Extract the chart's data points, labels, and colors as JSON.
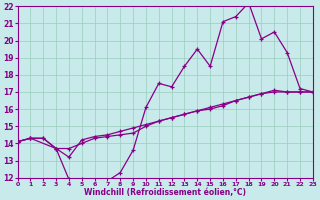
{
  "xlabel": "Windchill (Refroidissement éolien,°C)",
  "xlim": [
    0,
    23
  ],
  "ylim": [
    12,
    22
  ],
  "xticks": [
    0,
    1,
    2,
    3,
    4,
    5,
    6,
    7,
    8,
    9,
    10,
    11,
    12,
    13,
    14,
    15,
    16,
    17,
    18,
    19,
    20,
    21,
    22,
    23
  ],
  "yticks": [
    12,
    13,
    14,
    15,
    16,
    17,
    18,
    19,
    20,
    21,
    22
  ],
  "bg_color": "#c8eaea",
  "line_color": "#880088",
  "grid_color": "#99ccbb",
  "line1_x": [
    0,
    1,
    2,
    3,
    4,
    5,
    6,
    7,
    8,
    9,
    10,
    11,
    12,
    13,
    14,
    15,
    16,
    17,
    18,
    19,
    20,
    21,
    22,
    23
  ],
  "line1_y": [
    14.1,
    14.3,
    14.3,
    13.7,
    11.9,
    11.9,
    11.8,
    11.8,
    12.3,
    13.6,
    16.1,
    17.5,
    17.3,
    18.5,
    19.5,
    18.5,
    21.1,
    21.4,
    22.2,
    20.1,
    20.5,
    19.3,
    17.2,
    17.0
  ],
  "line2_x": [
    0,
    1,
    2,
    3,
    4,
    5,
    6,
    7,
    8,
    9,
    10,
    11,
    12,
    13,
    14,
    15,
    16,
    17,
    18,
    19,
    20,
    21,
    22,
    23
  ],
  "line2_y": [
    14.1,
    14.3,
    14.3,
    13.7,
    13.7,
    14.0,
    14.3,
    14.4,
    14.5,
    14.6,
    15.0,
    15.3,
    15.5,
    15.7,
    15.9,
    16.0,
    16.2,
    16.5,
    16.7,
    16.9,
    17.0,
    17.0,
    17.0,
    17.0
  ],
  "line3_x": [
    0,
    1,
    3,
    4,
    5,
    6,
    7,
    8,
    9,
    10,
    11,
    12,
    13,
    14,
    15,
    16,
    17,
    18,
    19,
    20,
    21,
    22,
    23
  ],
  "line3_y": [
    14.1,
    14.3,
    13.7,
    13.2,
    14.2,
    14.4,
    14.5,
    14.7,
    14.9,
    15.1,
    15.3,
    15.5,
    15.7,
    15.9,
    16.1,
    16.3,
    16.5,
    16.7,
    16.9,
    17.1,
    17.0,
    17.0,
    17.0
  ]
}
